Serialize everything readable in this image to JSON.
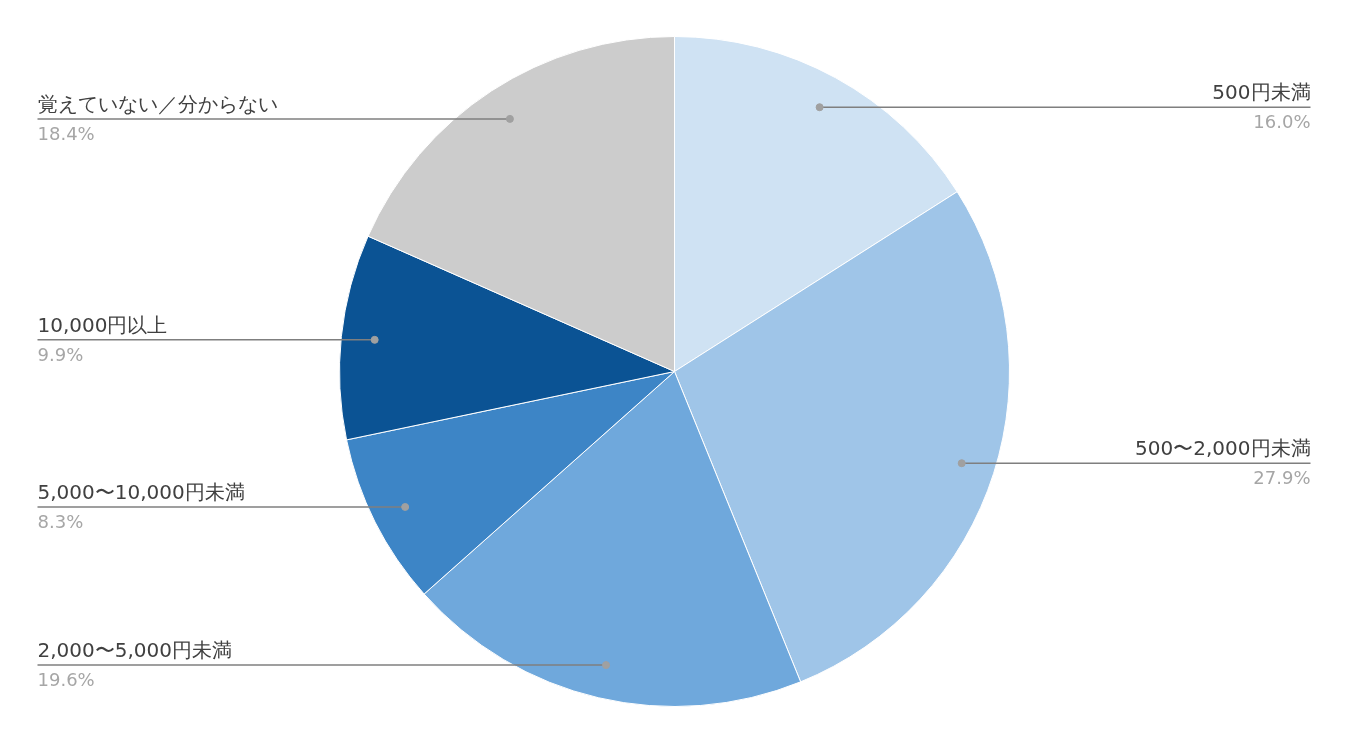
{
  "chart_data": {
    "type": "pie",
    "categories": [
      "500円未満",
      "500〜2,000円未満",
      "2,000〜5,000円未満",
      "5,000〜10,000円未満",
      "10,000円以上",
      "覚えていない／分からない"
    ],
    "values": [
      16.0,
      27.9,
      19.6,
      8.3,
      9.9,
      18.4
    ],
    "value_labels": [
      "16.0%",
      "27.9%",
      "19.6%",
      "8.3%",
      "9.9%",
      "18.4%"
    ],
    "colors": [
      "#cfe2f3",
      "#9fc5e8",
      "#6fa8dc",
      "#3d85c6",
      "#0b5394",
      "#cccccc"
    ]
  }
}
